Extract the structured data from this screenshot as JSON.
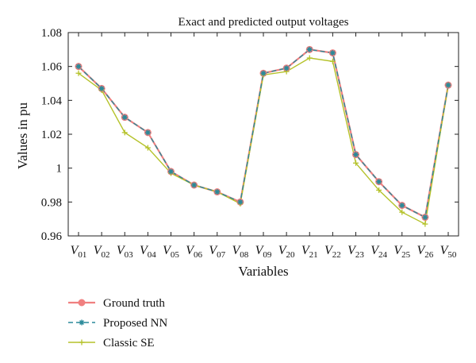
{
  "chart_data": {
    "type": "line",
    "title": "Exact and predicted output voltages",
    "xlabel": "Variables",
    "ylabel": "Values in pu",
    "ylim": [
      0.96,
      1.08
    ],
    "yticks": [
      0.96,
      0.98,
      1,
      1.02,
      1.04,
      1.06,
      1.08
    ],
    "ytick_labels": [
      "0.96",
      "0.98",
      "1",
      "1.02",
      "1.04",
      "1.06",
      "1.08"
    ],
    "categories": [
      {
        "main": "V",
        "sub": "01"
      },
      {
        "main": "V",
        "sub": "02"
      },
      {
        "main": "V",
        "sub": "03"
      },
      {
        "main": "V",
        "sub": "04"
      },
      {
        "main": "V",
        "sub": "05"
      },
      {
        "main": "V",
        "sub": "06"
      },
      {
        "main": "V",
        "sub": "07"
      },
      {
        "main": "V",
        "sub": "08"
      },
      {
        "main": "V",
        "sub": "09"
      },
      {
        "main": "V",
        "sub": "20"
      },
      {
        "main": "V",
        "sub": "21"
      },
      {
        "main": "V",
        "sub": "22"
      },
      {
        "main": "V",
        "sub": "23"
      },
      {
        "main": "V",
        "sub": "24"
      },
      {
        "main": "V",
        "sub": "25"
      },
      {
        "main": "V",
        "sub": "26"
      },
      {
        "main": "V",
        "sub": "50"
      }
    ],
    "series": [
      {
        "name": "Ground truth",
        "color": "#f08080",
        "marker": "circle",
        "dash": "solid",
        "values": [
          1.06,
          1.047,
          1.03,
          1.021,
          0.998,
          0.99,
          0.986,
          0.98,
          1.056,
          1.059,
          1.07,
          1.068,
          1.008,
          0.992,
          0.978,
          0.971,
          1.049
        ]
      },
      {
        "name": "Proposed NN",
        "color": "#2a8a9a",
        "marker": "asterisk",
        "dash": "dashed",
        "values": [
          1.06,
          1.047,
          1.03,
          1.021,
          0.998,
          0.99,
          0.986,
          0.98,
          1.056,
          1.059,
          1.07,
          1.068,
          1.008,
          0.992,
          0.978,
          0.971,
          1.049
        ]
      },
      {
        "name": "Classic SE",
        "color": "#b5c22a",
        "marker": "plus",
        "dash": "solid",
        "values": [
          1.056,
          1.046,
          1.021,
          1.012,
          0.997,
          0.99,
          0.986,
          0.979,
          1.055,
          1.057,
          1.065,
          1.063,
          1.003,
          0.987,
          0.974,
          0.967,
          1.049
        ]
      }
    ],
    "grid": false,
    "legend_position": "bottom-left"
  }
}
